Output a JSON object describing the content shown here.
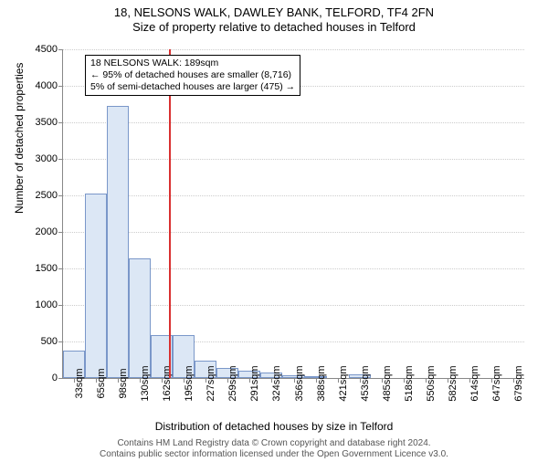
{
  "chart": {
    "type": "histogram",
    "title_main": "18, NELSONS WALK, DAWLEY BANK, TELFORD, TF4 2FN",
    "title_sub": "Size of property relative to detached houses in Telford",
    "ylabel": "Number of detached properties",
    "xlabel": "Distribution of detached houses by size in Telford",
    "ylim": [
      0,
      4500
    ],
    "ytick_step": 500,
    "yticks": [
      0,
      500,
      1000,
      1500,
      2000,
      2500,
      3000,
      3500,
      4000,
      4500
    ],
    "xticks": [
      "33sqm",
      "65sqm",
      "98sqm",
      "130sqm",
      "162sqm",
      "195sqm",
      "227sqm",
      "259sqm",
      "291sqm",
      "324sqm",
      "356sqm",
      "388sqm",
      "421sqm",
      "453sqm",
      "485sqm",
      "518sqm",
      "550sqm",
      "582sqm",
      "614sqm",
      "647sqm",
      "679sqm"
    ],
    "values": [
      370,
      2520,
      3720,
      1640,
      590,
      590,
      240,
      140,
      100,
      70,
      40,
      30,
      0,
      50,
      0,
      0,
      0,
      0,
      0,
      0,
      0
    ],
    "bar_color": "#dce7f5",
    "bar_border_color": "#7a97c9",
    "background_color": "#ffffff",
    "grid_color": "#cccccc",
    "axis_color": "#888888",
    "marker_color": "#d93030",
    "marker_bin_index": 4,
    "marker_position_in_bin": 0.85,
    "annotation": {
      "line1": "18 NELSONS WALK: 189sqm",
      "line2": "← 95% of detached houses are smaller (8,716)",
      "line3": "5% of semi-detached houses are larger (475) →",
      "border_color": "#000000",
      "bg_color": "#ffffff",
      "fontsize": 10.5
    },
    "title_fontsize": 13,
    "label_fontsize": 12,
    "tick_fontsize": 11
  },
  "footer": {
    "line1": "Contains HM Land Registry data © Crown copyright and database right 2024.",
    "line2": "Contains public sector information licensed under the Open Government Licence v3.0."
  }
}
